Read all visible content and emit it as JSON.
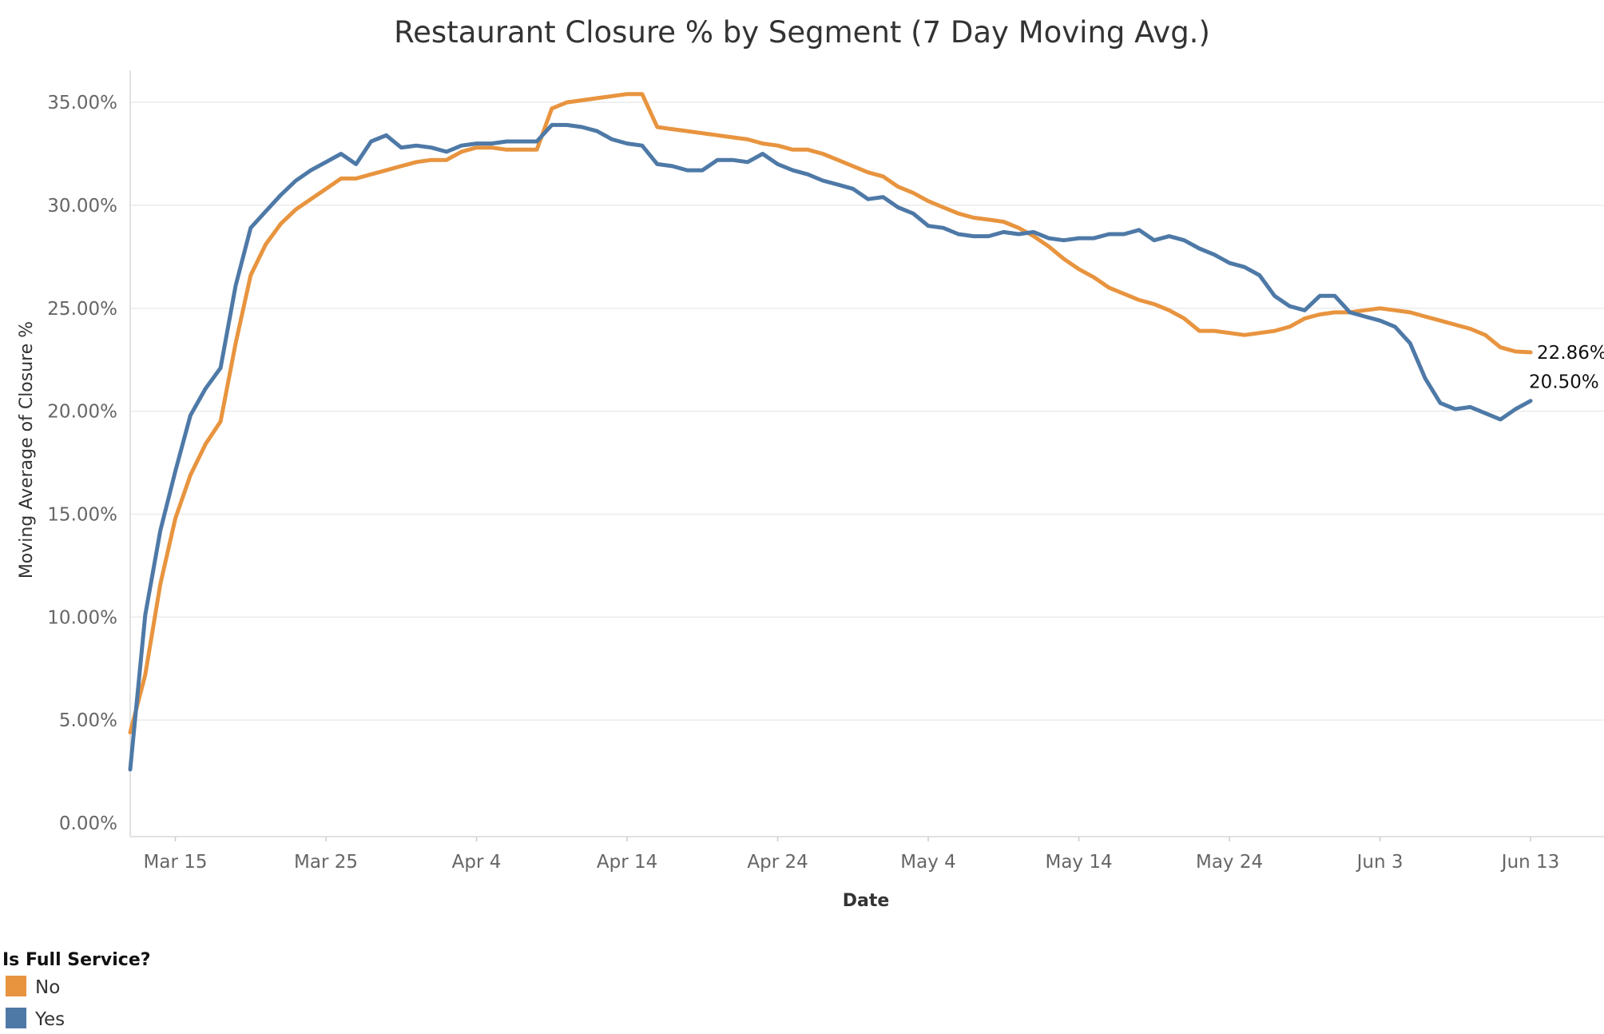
{
  "chart_data": {
    "type": "line",
    "title": "Restaurant Closure % by Segment (7 Day Moving Avg.)",
    "xlabel": "Date",
    "ylabel": "Moving Average of Closure %",
    "x_tick_labels": [
      "Mar 15",
      "Mar 25",
      "Apr 4",
      "Apr 14",
      "Apr 24",
      "May 4",
      "May 14",
      "May 24",
      "Jun 3",
      "Jun 13"
    ],
    "x_tick_day_index": [
      3,
      13,
      23,
      33,
      43,
      53,
      63,
      73,
      83,
      93
    ],
    "x_range_day_index": [
      0,
      98
    ],
    "y_tick_labels": [
      "0.00%",
      "5.00%",
      "10.00%",
      "15.00%",
      "20.00%",
      "25.00%",
      "30.00%",
      "35.00%"
    ],
    "y_tick_values": [
      0,
      5,
      10,
      15,
      20,
      25,
      30,
      35
    ],
    "ylim": [
      0,
      35
    ],
    "grid": true,
    "legend": {
      "title": "Is Full Service?",
      "position": "bottom-left",
      "items": [
        {
          "label": "No",
          "color": "#E8943F"
        },
        {
          "label": "Yes",
          "color": "#4E79A7"
        }
      ]
    },
    "end_labels": [
      "22.86%",
      "20.50%"
    ],
    "series": [
      {
        "name": "No",
        "color": "#E8943F",
        "values": [
          4.4,
          7.2,
          11.6,
          14.8,
          16.9,
          18.4,
          19.5,
          23.3,
          26.6,
          28.1,
          29.1,
          29.8,
          30.3,
          30.8,
          31.3,
          31.3,
          31.5,
          31.7,
          31.9,
          32.1,
          32.2,
          32.2,
          32.6,
          32.8,
          32.8,
          32.7,
          32.7,
          32.7,
          34.7,
          35.0,
          35.1,
          35.2,
          35.3,
          35.4,
          35.4,
          33.8,
          33.7,
          33.6,
          33.5,
          33.4,
          33.3,
          33.2,
          33.0,
          32.9,
          32.7,
          32.7,
          32.5,
          32.2,
          31.9,
          31.6,
          31.4,
          30.9,
          30.6,
          30.2,
          29.9,
          29.6,
          29.4,
          29.3,
          29.2,
          28.9,
          28.5,
          28.0,
          27.4,
          26.9,
          26.5,
          26.0,
          25.7,
          25.4,
          25.2,
          24.9,
          24.5,
          23.9,
          23.9,
          23.8,
          23.7,
          23.8,
          23.9,
          24.1,
          24.5,
          24.7,
          24.8,
          24.8,
          24.9,
          25.0,
          24.9,
          24.8,
          24.6,
          24.4,
          24.2,
          24.0,
          23.7,
          23.1,
          22.9,
          22.86
        ]
      },
      {
        "name": "Yes",
        "color": "#4E79A7",
        "values": [
          2.6,
          10.1,
          14.2,
          17.1,
          19.8,
          21.1,
          22.1,
          26.1,
          28.9,
          29.7,
          30.5,
          31.2,
          31.7,
          32.1,
          32.5,
          32.0,
          33.1,
          33.4,
          32.8,
          32.9,
          32.8,
          32.6,
          32.9,
          33.0,
          33.0,
          33.1,
          33.1,
          33.1,
          33.9,
          33.9,
          33.8,
          33.6,
          33.2,
          33.0,
          32.9,
          32.0,
          31.9,
          31.7,
          31.7,
          32.2,
          32.2,
          32.1,
          32.5,
          32.0,
          31.7,
          31.5,
          31.2,
          31.0,
          30.8,
          30.3,
          30.4,
          29.9,
          29.6,
          29.0,
          28.9,
          28.6,
          28.5,
          28.5,
          28.7,
          28.6,
          28.7,
          28.4,
          28.3,
          28.4,
          28.4,
          28.6,
          28.6,
          28.8,
          28.3,
          28.5,
          28.3,
          27.9,
          27.6,
          27.2,
          27.0,
          26.6,
          25.6,
          25.1,
          24.9,
          25.6,
          25.6,
          24.8,
          24.6,
          24.4,
          24.1,
          23.3,
          21.6,
          20.4,
          20.1,
          20.2,
          19.9,
          19.6,
          20.1,
          20.5
        ]
      }
    ]
  }
}
